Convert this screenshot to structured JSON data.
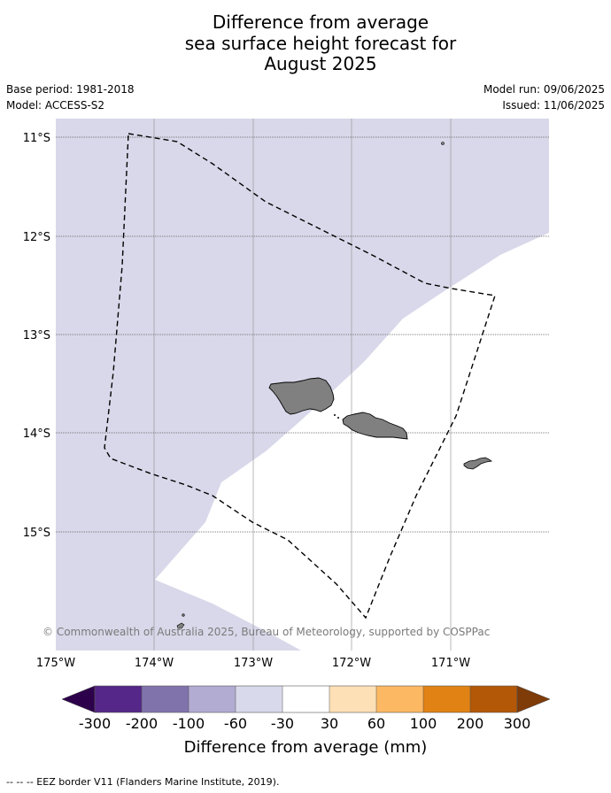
{
  "title": {
    "line1": "Difference from average",
    "line2": "sea surface height forecast for",
    "line3": "August 2025"
  },
  "meta": {
    "base_period": "Base period: 1981-2018",
    "model": "Model: ACCESS-S2",
    "model_run": "Model run: 09/06/2025",
    "issued": "Issued: 11/06/2025"
  },
  "map": {
    "lat_ticks": [
      "11°S",
      "12°S",
      "13°S",
      "14°S",
      "15°S"
    ],
    "lon_ticks": [
      "175°W",
      "174°W",
      "173°W",
      "172°W",
      "171°W"
    ],
    "attribution": "© Commonwealth of Australia 2025, Bureau of Meteorology, supported by COSPPac",
    "ocean_color": "#d8d8ea",
    "land_color": "#808080",
    "eez_line_style": "dashed black"
  },
  "colorbar": {
    "title": "Difference from average (mm)",
    "tick_labels": [
      "-300",
      "-200",
      "-100",
      "-60",
      "-30",
      "30",
      "60",
      "100",
      "200",
      "300"
    ],
    "colors": {
      "under": "#2d004b",
      "bins": [
        "#542788",
        "#8073ac",
        "#b2abd2",
        "#d8daeb",
        "#ffffff",
        "#fee0b6",
        "#fdb863",
        "#e08214",
        "#b35806"
      ],
      "over": "#7f3b08"
    }
  },
  "footnote": "-- -- -- EEZ border V11 (Flanders Marine Institute, 2019)."
}
